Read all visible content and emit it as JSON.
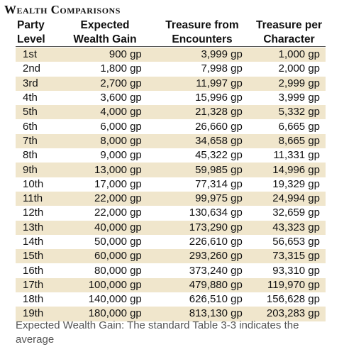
{
  "title": "Wealth Comparisons",
  "headers": {
    "col1": [
      "Party",
      "Level"
    ],
    "col2": [
      "Expected",
      "Wealth Gain"
    ],
    "col3": [
      "Treasure from",
      "Encounters"
    ],
    "col4": [
      "Treasure per",
      "Character"
    ]
  },
  "rows": [
    {
      "level": "1st",
      "wealth": "900 gp",
      "encounters": "3,999 gp",
      "per_char": "1,000 gp"
    },
    {
      "level": "2nd",
      "wealth": "1,800 gp",
      "encounters": "7,998 gp",
      "per_char": "2,000 gp"
    },
    {
      "level": "3rd",
      "wealth": "2,700 gp",
      "encounters": "11,997 gp",
      "per_char": "2,999 gp"
    },
    {
      "level": "4th",
      "wealth": "3,600 gp",
      "encounters": "15,996 gp",
      "per_char": "3,999 gp"
    },
    {
      "level": "5th",
      "wealth": "4,000 gp",
      "encounters": "21,328 gp",
      "per_char": "5,332 gp"
    },
    {
      "level": "6th",
      "wealth": "6,000 gp",
      "encounters": "26,660 gp",
      "per_char": "6,665 gp"
    },
    {
      "level": "7th",
      "wealth": "8,000 gp",
      "encounters": "34,658 gp",
      "per_char": "8,665 gp"
    },
    {
      "level": "8th",
      "wealth": "9,000 gp",
      "encounters": "45,322 gp",
      "per_char": "11,331 gp"
    },
    {
      "level": "9th",
      "wealth": "13,000 gp",
      "encounters": "59,985 gp",
      "per_char": "14,996 gp"
    },
    {
      "level": "10th",
      "wealth": "17,000 gp",
      "encounters": "77,314 gp",
      "per_char": "19,329 gp"
    },
    {
      "level": "11th",
      "wealth": "22,000 gp",
      "encounters": "99,975 gp",
      "per_char": "24,994 gp"
    },
    {
      "level": "12th",
      "wealth": "22,000 gp",
      "encounters": "130,634 gp",
      "per_char": "32,659 gp"
    },
    {
      "level": "13th",
      "wealth": "40,000 gp",
      "encounters": "173,290 gp",
      "per_char": "43,323 gp"
    },
    {
      "level": "14th",
      "wealth": "50,000 gp",
      "encounters": "226,610 gp",
      "per_char": "56,653 gp"
    },
    {
      "level": "15th",
      "wealth": "60,000 gp",
      "encounters": "293,260 gp",
      "per_char": "73,315 gp"
    },
    {
      "level": "16th",
      "wealth": "80,000 gp",
      "encounters": "373,240 gp",
      "per_char": "93,310 gp"
    },
    {
      "level": "17th",
      "wealth": "100,000 gp",
      "encounters": "479,880 gp",
      "per_char": "119,970 gp"
    },
    {
      "level": "18th",
      "wealth": "140,000 gp",
      "encounters": "626,510 gp",
      "per_char": "156,628 gp"
    },
    {
      "level": "19th",
      "wealth": "180,000 gp",
      "encounters": "813,130 gp",
      "per_char": "203,283 gp"
    }
  ],
  "row_shade_color": "#f0e6cc",
  "cutoff_text": "Expected Wealth Gain: The standard Table 3-3 indicates the average"
}
